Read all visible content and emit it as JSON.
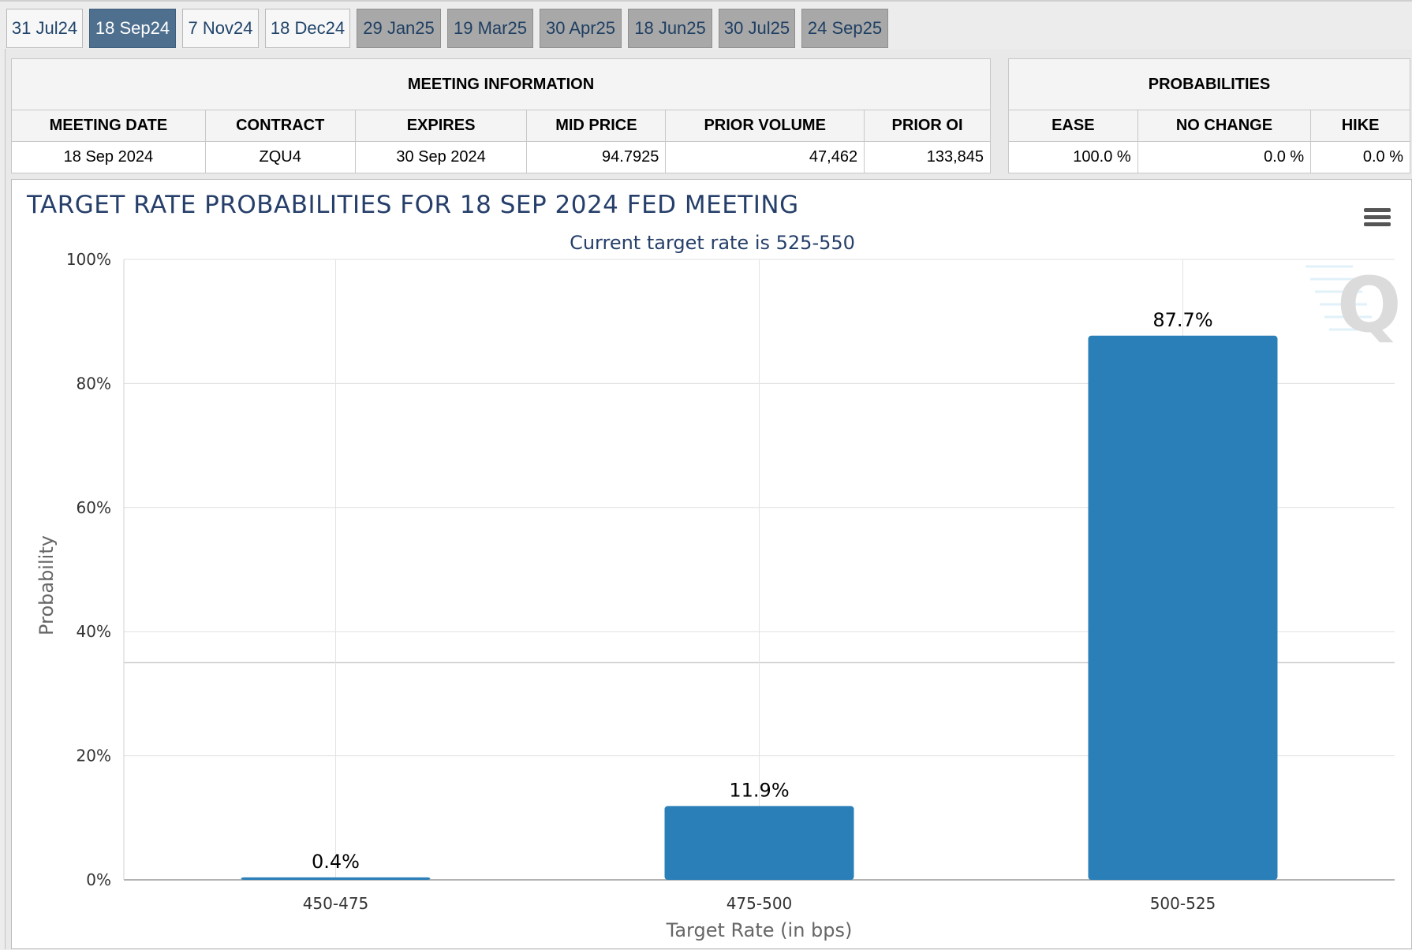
{
  "tabs": [
    {
      "label": "31 Jul24",
      "state": "normal"
    },
    {
      "label": "18 Sep24",
      "state": "active"
    },
    {
      "label": "7 Nov24",
      "state": "normal"
    },
    {
      "label": "18 Dec24",
      "state": "normal"
    },
    {
      "label": "29 Jan25",
      "state": "future"
    },
    {
      "label": "19 Mar25",
      "state": "future"
    },
    {
      "label": "30 Apr25",
      "state": "future"
    },
    {
      "label": "18 Jun25",
      "state": "future"
    },
    {
      "label": "30 Jul25",
      "state": "future"
    },
    {
      "label": "24 Sep25",
      "state": "future"
    }
  ],
  "meeting_info": {
    "heading": "MEETING INFORMATION",
    "columns": [
      "MEETING DATE",
      "CONTRACT",
      "EXPIRES",
      "MID PRICE",
      "PRIOR VOLUME",
      "PRIOR OI"
    ],
    "row": [
      "18 Sep 2024",
      "ZQU4",
      "30 Sep 2024",
      "94.7925",
      "47,462",
      "133,845"
    ]
  },
  "probabilities": {
    "heading": "PROBABILITIES",
    "columns": [
      "EASE",
      "NO CHANGE",
      "HIKE"
    ],
    "row": [
      "100.0 %",
      "0.0 %",
      "0.0 %"
    ]
  },
  "colors": {
    "bar": "#2a7fb8",
    "title": "#263f6a",
    "active_tab": "#4f6f8f",
    "future_tab": "#a8a8a8"
  },
  "icons": {
    "chart_menu": "hamburger-menu-icon",
    "watermark": "q-logo-watermark"
  },
  "chart_data": {
    "type": "bar",
    "title": "TARGET RATE PROBABILITIES FOR 18 SEP 2024 FED MEETING",
    "subtitle": "Current target rate is 525-550",
    "xlabel": "Target Rate (in bps)",
    "ylabel": "Probability",
    "categories": [
      "450-475",
      "475-500",
      "500-525"
    ],
    "values": [
      0.4,
      11.9,
      87.7
    ],
    "value_labels": [
      "0.4%",
      "11.9%",
      "87.7%"
    ],
    "ylim": [
      0,
      100
    ],
    "yticks": [
      0,
      20,
      40,
      60,
      80,
      100
    ],
    "ytick_labels": [
      "0%",
      "20%",
      "40%",
      "60%",
      "80%",
      "100%"
    ],
    "grid": true,
    "legend": "none"
  }
}
